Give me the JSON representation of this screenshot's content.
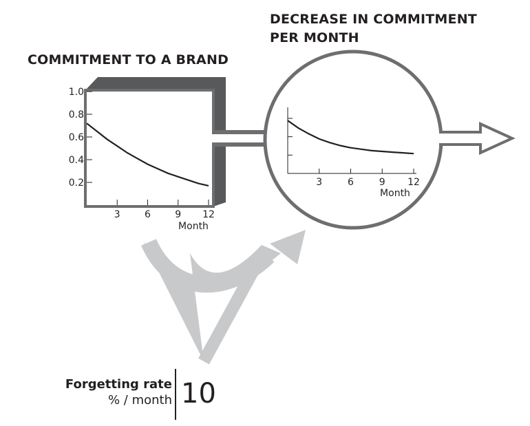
{
  "titles": {
    "stock": "COMMITMENT TO A BRAND",
    "flow_line1": "DECREASE IN COMMITMENT",
    "flow_line2": "PER MONTH"
  },
  "stock_chart": {
    "y_ticks": [
      "1.0",
      "0.8",
      "0.6",
      "0.4",
      "0.2"
    ],
    "x_ticks": [
      "3",
      "6",
      "9",
      "12"
    ],
    "xlabel": "Month"
  },
  "flow_chart": {
    "x_ticks": [
      "3",
      "6",
      "9",
      "12"
    ],
    "xlabel": "Month"
  },
  "forgetting": {
    "label": "Forgetting rate",
    "unit": "% / month",
    "value": "10"
  },
  "colors": {
    "dark_gray": "#58595b",
    "mid_gray": "#6d6e70",
    "light_gray": "#c8c9cb",
    "curve": "#231f20"
  },
  "chart_data": [
    {
      "type": "line",
      "xlabel": "Month",
      "ylim": [
        0,
        1.0
      ],
      "xlim": [
        0,
        12
      ],
      "series": [
        {
          "x": [
            0,
            1,
            2,
            3,
            4,
            5,
            6,
            7,
            8,
            9,
            10,
            11,
            12
          ],
          "y": [
            0.72,
            0.65,
            0.58,
            0.52,
            0.46,
            0.41,
            0.36,
            0.32,
            0.28,
            0.25,
            0.22,
            0.19,
            0.17
          ]
        }
      ]
    },
    {
      "type": "line",
      "xlabel": "Month",
      "xlim": [
        0,
        12
      ],
      "series": [
        {
          "x": [
            0,
            1,
            2,
            3,
            4,
            5,
            6,
            7,
            8,
            9,
            10,
            11,
            12
          ],
          "y": [
            0.072,
            0.062,
            0.054,
            0.047,
            0.042,
            0.038,
            0.035,
            0.033,
            0.031,
            0.03,
            0.029,
            0.028,
            0.027
          ]
        }
      ]
    }
  ]
}
